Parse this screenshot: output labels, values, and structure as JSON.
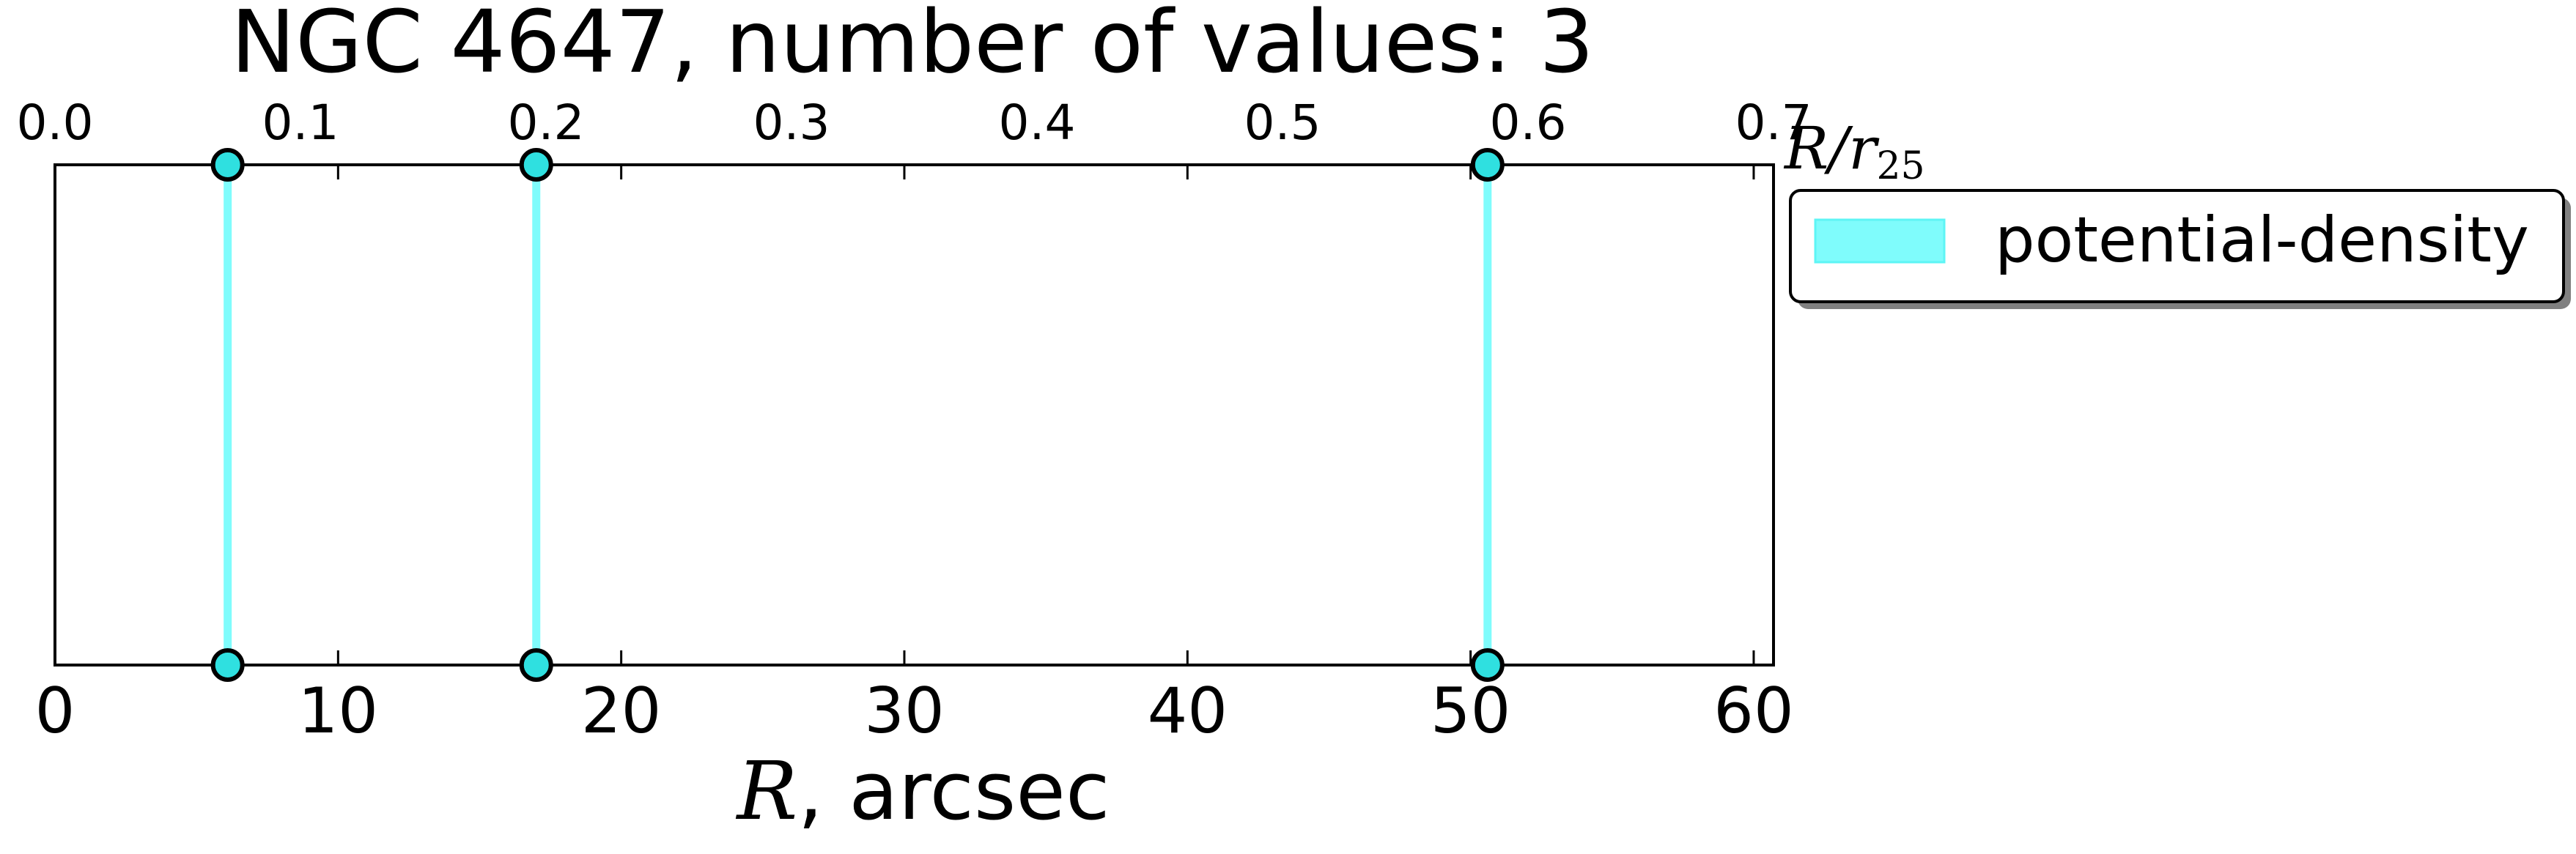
{
  "chart_data": {
    "type": "scatter",
    "title": "NGC 4647, number of values: 3",
    "xlabel_symbol": "R",
    "xlabel_suffix": ", arcsec",
    "top_xlabel_base": "R/r",
    "top_xlabel_sub": "25",
    "xlim": [
      0,
      60.7
    ],
    "top_xlim": [
      0,
      0.7
    ],
    "x_ticks": [
      0,
      10,
      20,
      30,
      40,
      50,
      60
    ],
    "x_tick_labels": [
      "0",
      "10",
      "20",
      "30",
      "40",
      "50",
      "60"
    ],
    "top_ticks": [
      0.0,
      0.1,
      0.2,
      0.3,
      0.4,
      0.5,
      0.6,
      0.7
    ],
    "top_tick_labels": [
      "0.0",
      "0.1",
      "0.2",
      "0.3",
      "0.4",
      "0.5",
      "0.6",
      "0.7"
    ],
    "grid": false,
    "legend_position": "outside-right",
    "series": [
      {
        "name": "potential-density",
        "color": "#7ffcfc",
        "x": [
          6.1,
          17.0,
          50.6
        ]
      }
    ]
  }
}
